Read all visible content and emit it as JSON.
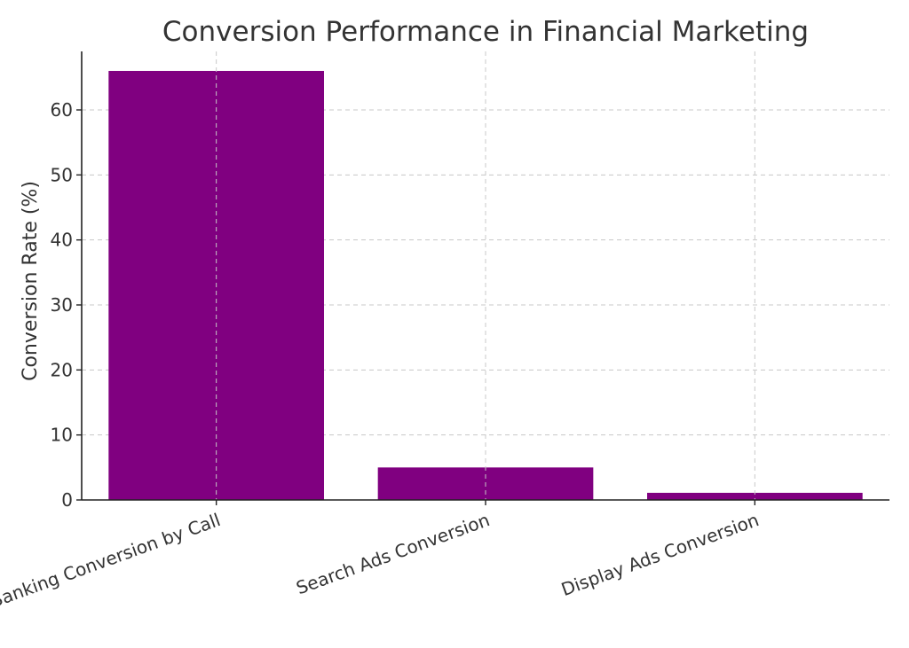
{
  "chart_data": {
    "type": "bar",
    "title": "Conversion Performance in Financial Marketing",
    "xlabel": "",
    "ylabel": "Conversion Rate (%)",
    "categories": [
      "Banking Conversion by Call",
      "Search Ads Conversion",
      "Display Ads Conversion"
    ],
    "values": [
      66,
      5,
      1.1
    ],
    "ylim": [
      0,
      69
    ],
    "yticks": [
      0,
      10,
      20,
      30,
      40,
      50,
      60
    ],
    "grid": true,
    "bar_color": "#800080"
  }
}
